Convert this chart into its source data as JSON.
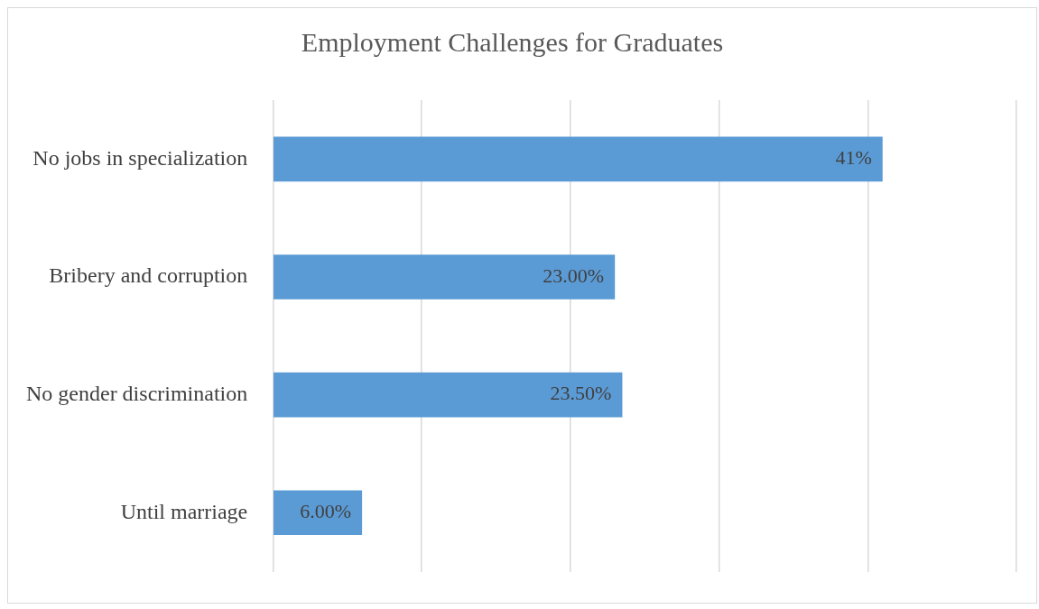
{
  "chart_data": {
    "type": "bar",
    "orientation": "horizontal",
    "title": "Employment Challenges for Graduates",
    "categories": [
      "No jobs in specialization",
      "Bribery and corruption",
      "No gender discrimination",
      "Until marriage"
    ],
    "values": [
      41,
      23,
      23.5,
      6
    ],
    "value_labels": [
      "41%",
      "23.00%",
      "23.50%",
      "6.00%"
    ],
    "color": "#5b9bd5",
    "xlim": [
      0,
      50
    ],
    "xticks": [
      {
        "value": 0,
        "label": null
      },
      {
        "value": 10,
        "label": null
      },
      {
        "value": 20,
        "label": null
      },
      {
        "value": 30,
        "label": null
      },
      {
        "value": 40,
        "label": null
      },
      {
        "value": 50,
        "label": null
      }
    ],
    "grid": "x",
    "tick_labels": "y",
    "legend": false
  }
}
